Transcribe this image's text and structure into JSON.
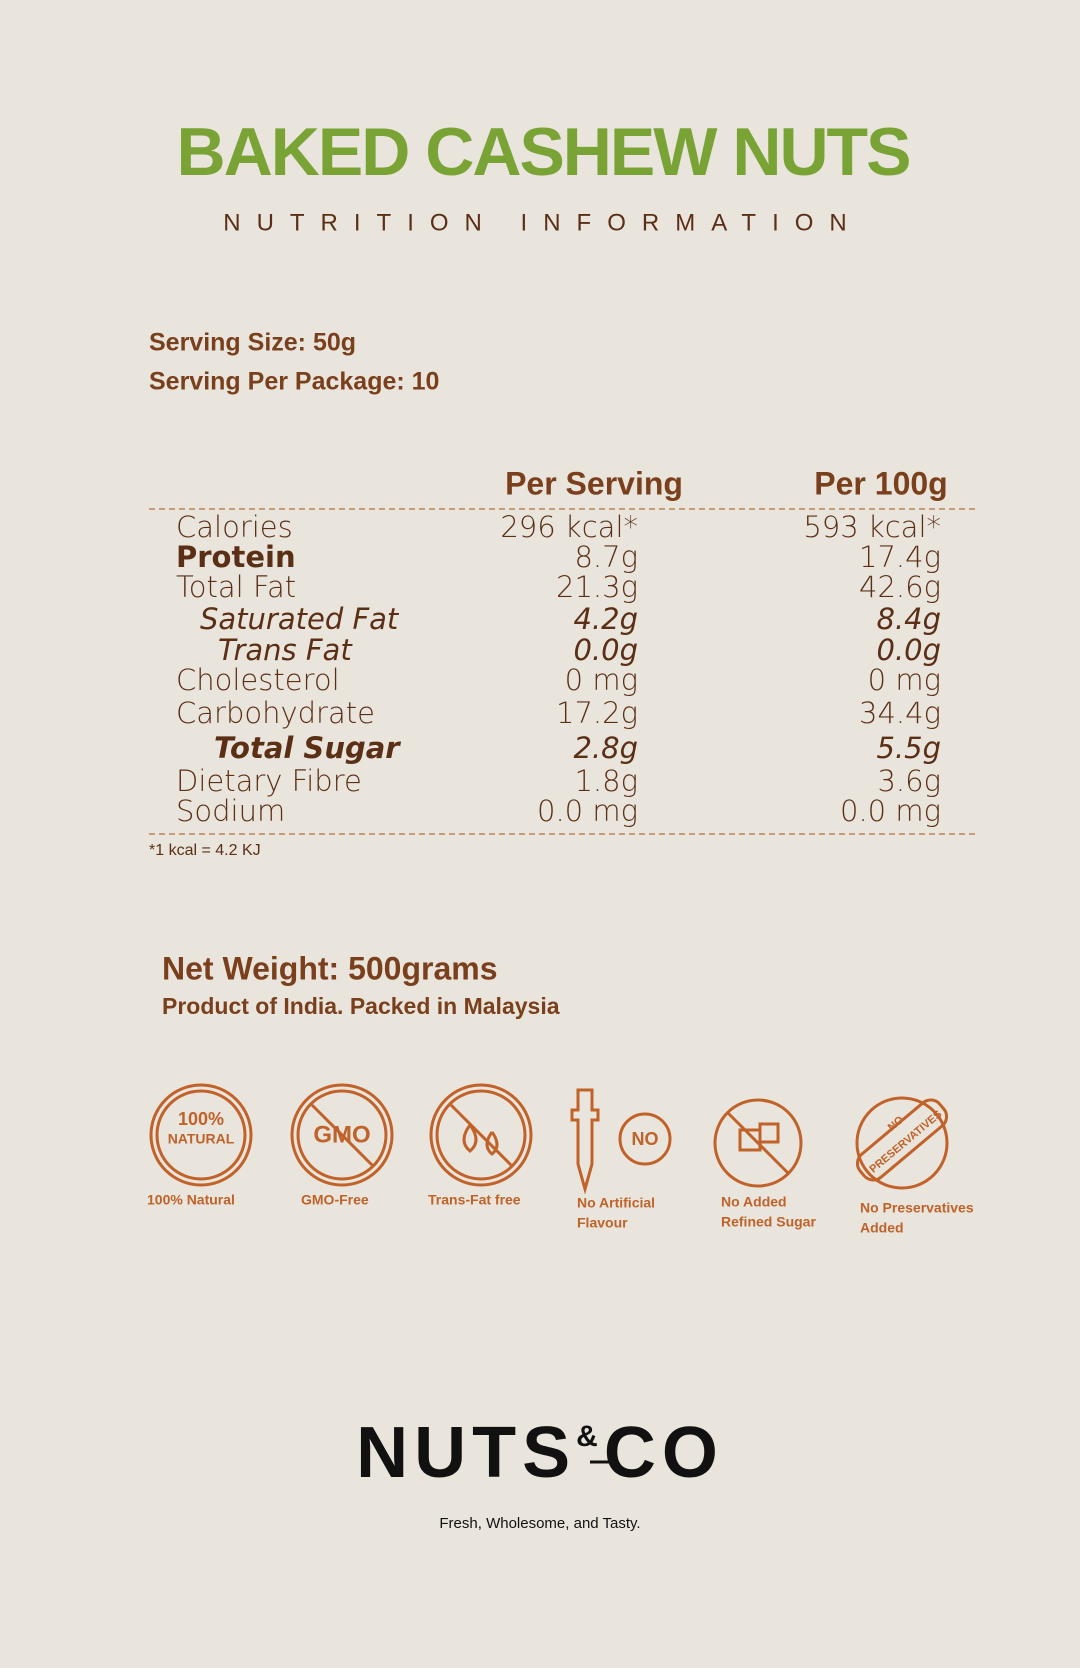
{
  "header": {
    "title": "BAKED CASHEW NUTS",
    "subtitle": "NUTRITION INFORMATION"
  },
  "serving": {
    "size": "Serving Size: 50g",
    "per_package": "Serving Per Package: 10"
  },
  "table": {
    "columns": [
      "Per Serving",
      "Per 100g"
    ],
    "rows": [
      [
        "Calories",
        "296 kcal*",
        "593 kcal*"
      ],
      [
        "Protein",
        "8.7g",
        "17.4g"
      ],
      [
        "Total Fat",
        "21.3g",
        "42.6g"
      ],
      [
        "Saturated Fat",
        "4.2g",
        "8.4g"
      ],
      [
        "Trans Fat",
        "0.0g",
        "0.0g"
      ],
      [
        "Cholesterol",
        "0 mg",
        "0 mg"
      ],
      [
        "Carbohydrate",
        "17.2g",
        "34.4g"
      ],
      [
        "Total Sugar",
        "2.8g",
        "5.5g"
      ],
      [
        "Dietary Fibre",
        "1.8g",
        "3.6g"
      ],
      [
        "Sodium",
        "0.0 mg",
        "0.0 mg"
      ]
    ],
    "footnote": "*1 kcal = 4.2 KJ"
  },
  "origin": {
    "net_weight": "Net Weight: 500grams",
    "product": "Product of India. Packed in Malaysia"
  },
  "badges": [
    {
      "icon_text": [
        "100%",
        "NATURAL"
      ],
      "label": [
        "100% Natural"
      ]
    },
    {
      "icon_text": [
        "GMO"
      ],
      "label": [
        "GMO-Free"
      ]
    },
    {
      "icon_text": [],
      "label": [
        "Trans-Fat free"
      ]
    },
    {
      "icon_text": [
        "NO"
      ],
      "label": [
        "No Artificial",
        "Flavour"
      ]
    },
    {
      "icon_text": [],
      "label": [
        "No Added",
        "Refined Sugar"
      ]
    },
    {
      "icon_text": [
        "NO",
        "PRESERVATIVES"
      ],
      "label": [
        "No Preservatives",
        "Added"
      ]
    }
  ],
  "brand": {
    "name_left": "NUTS",
    "ampersand": "&",
    "name_right": "CO",
    "tagline": "Fresh, Wholesome, and Tasty."
  }
}
